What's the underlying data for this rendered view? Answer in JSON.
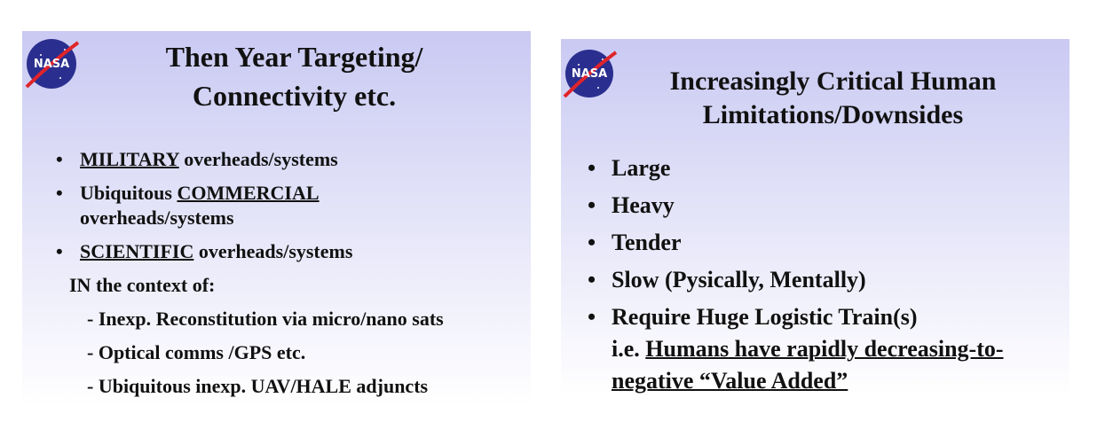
{
  "slides": [
    {
      "logo": "NASA",
      "title": [
        "Then Year Targeting/",
        "Connectivity etc."
      ],
      "items": [
        {
          "kind": "bullet",
          "lines": [
            [
              {
                "text": "MILITARY",
                "underline": true
              },
              {
                "text": " overheads/systems"
              }
            ]
          ]
        },
        {
          "kind": "bullet",
          "lines": [
            [
              {
                "text": "Ubiquitous "
              },
              {
                "text": "COMMERCIAL",
                "underline": true
              }
            ],
            [
              {
                "text": "overheads/systems"
              }
            ]
          ]
        },
        {
          "kind": "bullet",
          "lines": [
            [
              {
                "text": "SCIENTIFIC",
                "underline": true
              },
              {
                "text": " overheads/systems"
              }
            ]
          ]
        },
        {
          "kind": "plain",
          "lines": [
            [
              {
                "text": "IN the context of:"
              }
            ]
          ]
        },
        {
          "kind": "sub",
          "lines": [
            [
              {
                "text": "- Inexp. Reconstitution via micro/nano sats"
              }
            ]
          ]
        },
        {
          "kind": "sub",
          "lines": [
            [
              {
                "text": "- Optical comms /GPS etc."
              }
            ]
          ]
        },
        {
          "kind": "sub",
          "lines": [
            [
              {
                "text": "- Ubiquitous inexp. UAV/HALE adjuncts"
              }
            ]
          ]
        }
      ]
    },
    {
      "logo": "NASA",
      "title": [
        "Increasingly Critical Human",
        "Limitations/Downsides"
      ],
      "items": [
        {
          "kind": "bullet",
          "lines": [
            [
              {
                "text": "Large"
              }
            ]
          ]
        },
        {
          "kind": "bullet",
          "lines": [
            [
              {
                "text": "Heavy"
              }
            ]
          ]
        },
        {
          "kind": "bullet",
          "lines": [
            [
              {
                "text": "Tender"
              }
            ]
          ]
        },
        {
          "kind": "bullet",
          "lines": [
            [
              {
                "text": "Slow (Pysically, Mentally)"
              }
            ]
          ]
        },
        {
          "kind": "bullet",
          "lines": [
            [
              {
                "text": "Require Huge Logistic Train(s)"
              }
            ],
            [
              {
                "text": "i.e. "
              },
              {
                "text": "Humans have rapidly decreasing-to-",
                "underline": true
              }
            ],
            [
              {
                "text": "negative “Value Added”",
                "underline": true
              }
            ]
          ]
        }
      ]
    }
  ]
}
